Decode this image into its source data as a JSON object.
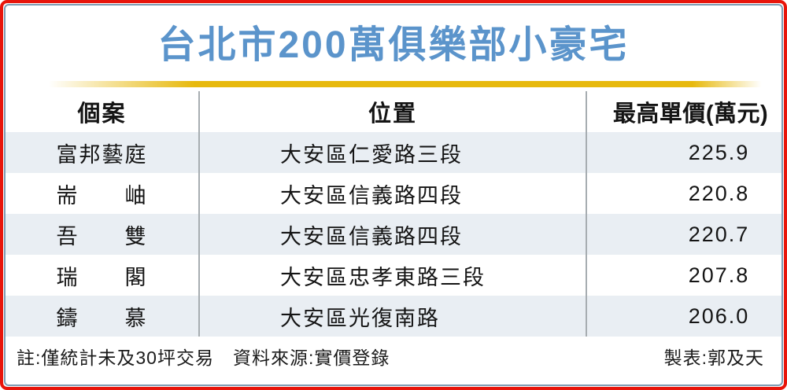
{
  "title": {
    "text": "台北市200萬俱樂部小豪宅",
    "color": "#5b94cb",
    "rule_color": "#e7b90d"
  },
  "frame": {
    "outer_border_color": "#e8150b",
    "inner_border_color": "#7d9cb4"
  },
  "table": {
    "alt_row_color": "#e9eef3",
    "columns": [
      {
        "label": "個案"
      },
      {
        "label": "位置"
      },
      {
        "label": "最高單價(萬元)"
      }
    ],
    "rows": [
      {
        "name": "富邦藝庭",
        "location": "大安區仁愛路三段",
        "price": "225.9"
      },
      {
        "name": "耑　　岫",
        "location": "大安區信義路四段",
        "price": "220.8"
      },
      {
        "name": "吾　　雙",
        "location": "大安區信義路四段",
        "price": "220.7"
      },
      {
        "name": "瑞　　閣",
        "location": "大安區忠孝東路三段",
        "price": "207.8"
      },
      {
        "name": "鑄　　慕",
        "location": "大安區光復南路",
        "price": "206.0"
      }
    ]
  },
  "footer": {
    "note": "註:僅統計未及30坪交易　資料來源:實價登錄",
    "credit": "製表:郭及天"
  },
  "chart_data": {
    "type": "table",
    "title": "台北市200萬俱樂部小豪宅",
    "columns": [
      "個案",
      "位置",
      "最高單價(萬元)"
    ],
    "rows": [
      [
        "富邦藝庭",
        "大安區仁愛路三段",
        225.9
      ],
      [
        "耑岫",
        "大安區信義路四段",
        220.8
      ],
      [
        "吾雙",
        "大安區信義路四段",
        220.7
      ],
      [
        "瑞閣",
        "大安區忠孝東路三段",
        207.8
      ],
      [
        "鑄慕",
        "大安區光復南路",
        206.0
      ]
    ],
    "unit": "萬元",
    "note": "註:僅統計未及30坪交易",
    "source": "資料來源:實價登錄",
    "credit": "製表:郭及天"
  }
}
